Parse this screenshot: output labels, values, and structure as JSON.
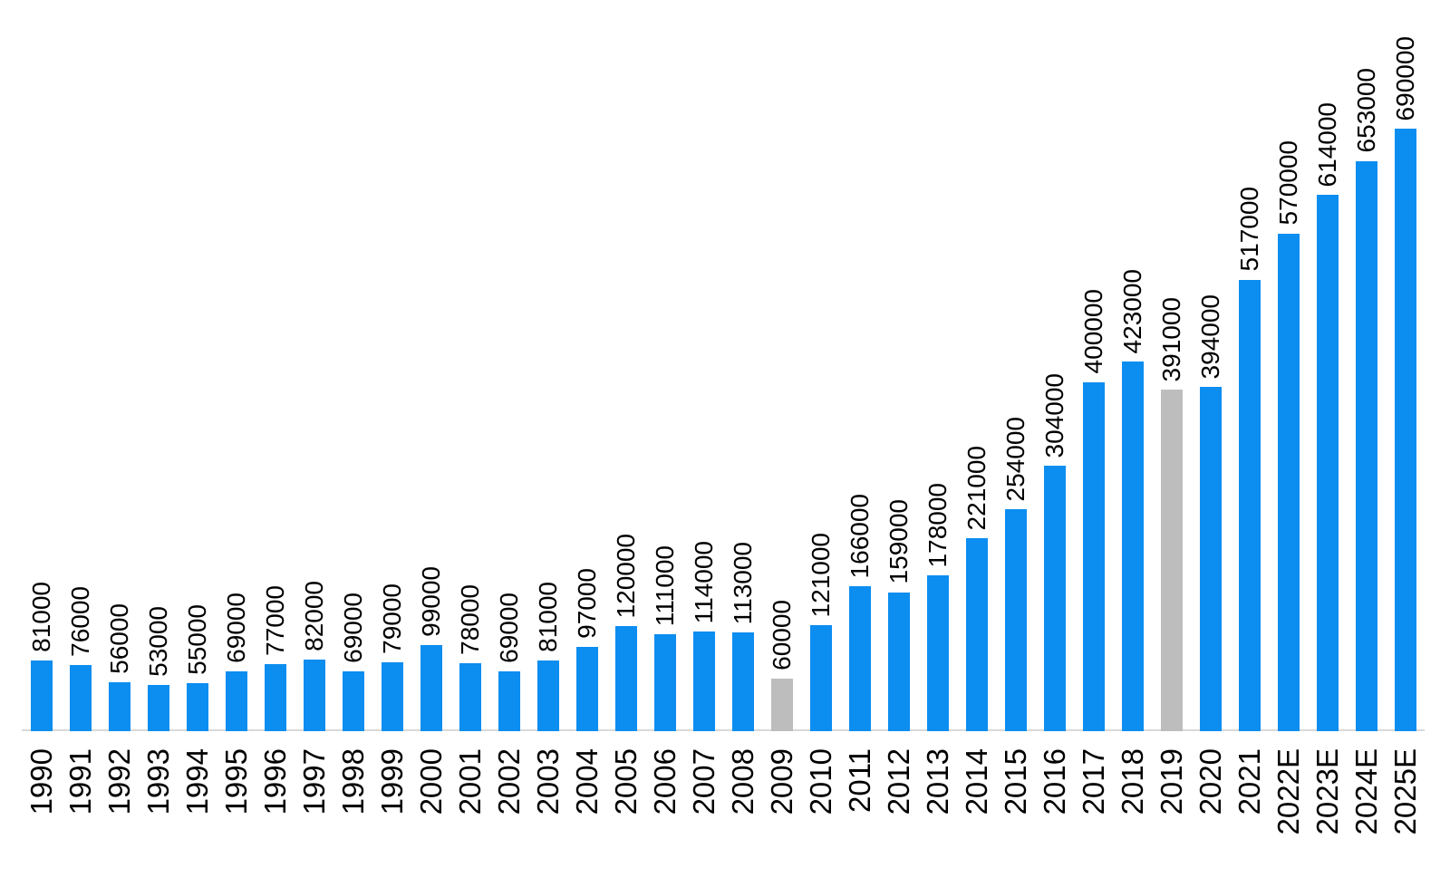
{
  "chart_data": {
    "type": "bar",
    "title": "",
    "xlabel": "",
    "ylabel": "",
    "categories": [
      "1990",
      "1991",
      "1992",
      "1993",
      "1994",
      "1995",
      "1996",
      "1997",
      "1998",
      "1999",
      "2000",
      "2001",
      "2002",
      "2003",
      "2004",
      "2005",
      "2006",
      "2007",
      "2008",
      "2009",
      "2010",
      "2011",
      "2012",
      "2013",
      "2014",
      "2015",
      "2016",
      "2017",
      "2018",
      "2019",
      "2020",
      "2021",
      "2022E",
      "2023E",
      "2024E",
      "2025E"
    ],
    "values": [
      81000,
      76000,
      56000,
      53000,
      55000,
      69000,
      77000,
      82000,
      69000,
      79000,
      99000,
      78000,
      69000,
      81000,
      97000,
      120000,
      111000,
      114000,
      113000,
      60000,
      121000,
      166000,
      159000,
      178000,
      221000,
      254000,
      304000,
      400000,
      423000,
      391000,
      394000,
      517000,
      570000,
      614000,
      653000,
      690000
    ],
    "ylim": [
      0,
      690000
    ],
    "grid": false,
    "legend": false,
    "data_labels": "rotated-90-above-bars",
    "category_labels": "rotated-90-below-axis",
    "colors": {
      "bar": "#0C8DF0",
      "muted_bar": "#BDBDBD",
      "label_text": "#000000",
      "axis_line": "#D9D9D9",
      "background": "#FFFFFF"
    },
    "muted_indices": [
      19,
      29
    ]
  }
}
